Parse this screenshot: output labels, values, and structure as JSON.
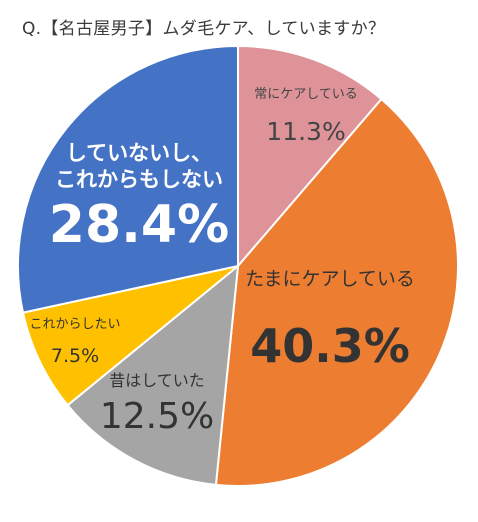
{
  "title": "Q.【名古屋男子】ムダ毛ケア、していますか？",
  "chart_data": {
    "type": "pie",
    "title": "Q.【名古屋男子】ムダ毛ケア、していますか？",
    "start_angle_deg": 0,
    "direction": "clockwise",
    "slices": [
      {
        "label": "常にケアしている",
        "value": 11.3,
        "value_label": "11.3%",
        "color": "#dd9397",
        "label_color": "#444444",
        "value_color": "#444444"
      },
      {
        "label": "たまにケアしている",
        "value": 40.3,
        "value_label": "40.3%",
        "color": "#ed7d31",
        "label_color": "#333333",
        "value_color": "#333333"
      },
      {
        "label": "昔はしていた",
        "value": 12.5,
        "value_label": "12.5%",
        "color": "#a5a5a5",
        "label_color": "#333333",
        "value_color": "#333333"
      },
      {
        "label": "これからしたい",
        "value": 7.5,
        "value_label": "7.5%",
        "color": "#ffc000",
        "label_color": "#333333",
        "value_color": "#333333"
      },
      {
        "label": "していないし、\nこれからもしない",
        "value": 28.4,
        "value_label": "28.4%",
        "color": "#4472c4",
        "label_color": "#ffffff",
        "value_color": "#ffffff"
      }
    ]
  }
}
